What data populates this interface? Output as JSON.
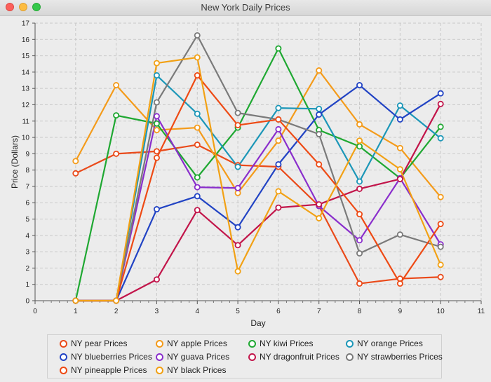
{
  "window": {
    "title": "New York Daily Prices"
  },
  "chart_data": {
    "type": "line",
    "title": "",
    "xlabel": "Day",
    "ylabel": "Price (Dollars)",
    "xlim": [
      0,
      11
    ],
    "ylim": [
      0,
      17
    ],
    "xticks": [
      0,
      1,
      2,
      3,
      4,
      5,
      6,
      7,
      8,
      9,
      10,
      11
    ],
    "yticks": [
      0,
      1,
      2,
      3,
      4,
      5,
      6,
      7,
      8,
      9,
      10,
      11,
      12,
      13,
      14,
      15,
      16,
      17
    ],
    "grid": true,
    "legend": "bottom",
    "x": [
      1,
      2,
      3,
      4,
      5,
      6,
      7,
      8,
      9,
      10
    ],
    "series": [
      {
        "name": "NY pear Prices",
        "color": "#ea4a1a",
        "values": [
          7.8,
          9.0,
          9.15,
          9.55,
          8.3,
          8.2,
          5.8,
          1.05,
          1.35,
          1.45
        ]
      },
      {
        "name": "NY apple Prices",
        "color": "#f49b1a",
        "values": [
          8.55,
          13.2,
          10.45,
          10.6,
          6.6,
          9.8,
          14.1,
          10.8,
          9.35,
          6.35
        ]
      },
      {
        "name": "NY kiwi Prices",
        "color": "#1fa832",
        "values": [
          0,
          11.35,
          10.85,
          7.55,
          10.6,
          15.45,
          10.45,
          9.45,
          7.5,
          10.65
        ]
      },
      {
        "name": "NY orange Prices",
        "color": "#1c97b8",
        "values": [
          0,
          0,
          13.8,
          11.45,
          8.2,
          11.8,
          11.75,
          7.3,
          11.95,
          9.95
        ]
      },
      {
        "name": "NY blueberries Prices",
        "color": "#2143c4",
        "values": [
          0,
          0,
          5.6,
          6.4,
          4.5,
          8.35,
          11.4,
          13.2,
          11.1,
          12.7
        ]
      },
      {
        "name": "NY guava Prices",
        "color": "#8a2ecc",
        "values": [
          0,
          0,
          11.3,
          6.95,
          6.9,
          10.5,
          5.8,
          3.7,
          7.5,
          3.45
        ]
      },
      {
        "name": "NY dragonfruit Prices",
        "color": "#c2154a",
        "values": [
          0,
          0,
          1.3,
          5.55,
          3.4,
          5.7,
          5.9,
          6.85,
          7.45,
          12.05
        ]
      },
      {
        "name": "NY strawberries Prices",
        "color": "#7a7a7a",
        "values": [
          0,
          0,
          12.15,
          16.25,
          11.5,
          11.1,
          10.2,
          2.9,
          4.05,
          3.3
        ]
      },
      {
        "name": "NY pineapple Prices",
        "color": "#ee4a14",
        "values": [
          0,
          0,
          8.75,
          13.8,
          10.75,
          11.1,
          8.35,
          5.3,
          1.05,
          4.7
        ]
      },
      {
        "name": "NY black Prices",
        "color": "#f2a114",
        "values": [
          0,
          0,
          14.55,
          14.9,
          1.8,
          6.7,
          5.05,
          9.8,
          8.05,
          2.2
        ]
      }
    ]
  },
  "legend": {
    "items": [
      "NY pear Prices",
      "NY apple Prices",
      "NY kiwi Prices",
      "NY orange Prices",
      "NY blueberries Prices",
      "NY guava Prices",
      "NY dragonfruit Prices",
      "NY strawberries Prices",
      "NY pineapple Prices",
      "NY black Prices"
    ]
  }
}
